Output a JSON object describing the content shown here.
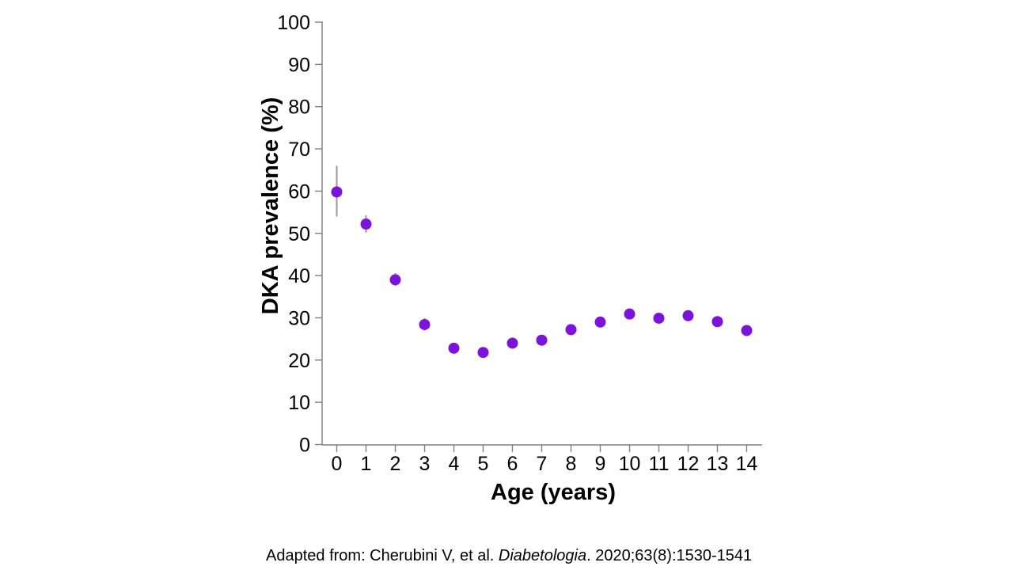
{
  "figure": {
    "citation": {
      "prefix": "Adapted from: Cherubini V, et al. ",
      "journal_italic": "Diabetologia",
      "suffix": ". 2020;63(8):1530-1541"
    }
  },
  "chart_data": {
    "type": "scatter",
    "title": "",
    "xlabel": "Age (years)",
    "ylabel": "DKA prevalence (%)",
    "x": [
      0,
      1,
      2,
      3,
      4,
      5,
      6,
      7,
      8,
      9,
      10,
      11,
      12,
      13,
      14
    ],
    "values": [
      59.8,
      52.2,
      39,
      28.4,
      22.8,
      21.8,
      24,
      24.7,
      27.2,
      29,
      30.9,
      29.9,
      30.5,
      29.1,
      27
    ],
    "error_low": [
      54,
      50.2,
      37.6,
      27,
      null,
      null,
      null,
      null,
      null,
      null,
      null,
      null,
      null,
      null,
      null
    ],
    "error_high": [
      66,
      54.3,
      40.6,
      29.9,
      null,
      null,
      null,
      null,
      null,
      null,
      null,
      null,
      null,
      null,
      null
    ],
    "x_ticks": [
      0,
      1,
      2,
      3,
      4,
      5,
      6,
      7,
      8,
      9,
      10,
      11,
      12,
      13,
      14
    ],
    "y_ticks": [
      0,
      10,
      20,
      30,
      40,
      50,
      60,
      70,
      80,
      90,
      100
    ],
    "xlim": [
      -0.5,
      14.5
    ],
    "ylim": [
      0,
      100
    ],
    "grid": false,
    "legend_position": "none",
    "marker_color": "#7D13DB",
    "error_bar_color": "#9a9a9a",
    "axis_color": "#808080",
    "text_color": "#000000"
  }
}
